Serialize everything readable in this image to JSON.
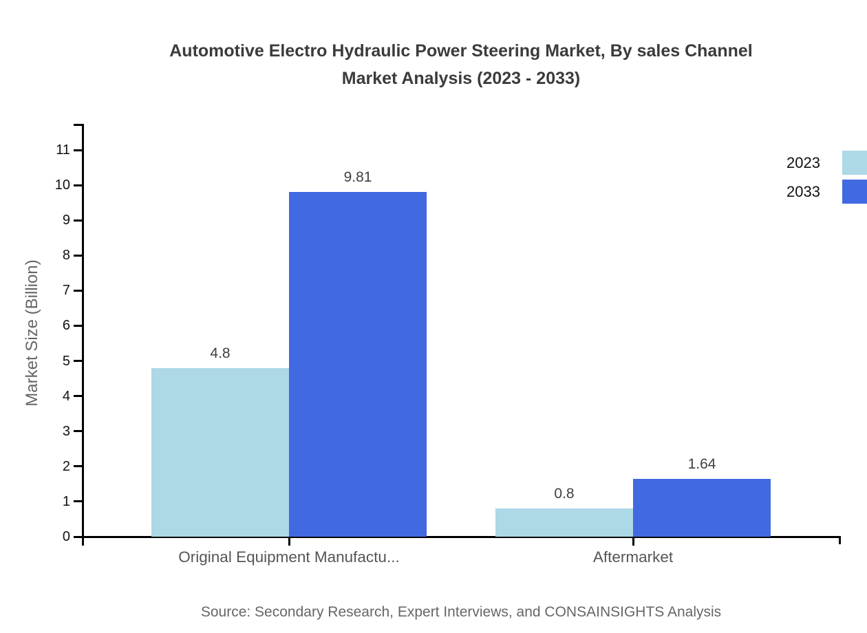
{
  "title_line1": "Automotive Electro Hydraulic Power Steering Market, By sales Channel",
  "title_line2": "Market Analysis (2023 - 2033)",
  "source": "Source: Secondary Research, Expert Interviews, and CONSAINSIGHTS Analysis",
  "chart_data": {
    "type": "bar",
    "title": "Automotive Electro Hydraulic Power Steering Market, By sales Channel Market Analysis (2023 - 2033)",
    "ylabel": "Market Size (Billion)",
    "xlabel": "",
    "categories": [
      "Original Equipment Manufactu...",
      "Aftermarket"
    ],
    "series": [
      {
        "name": "2023",
        "color": "#ADD8E6",
        "values": [
          4.8,
          0.8
        ],
        "labels": [
          "4.8",
          "0.8"
        ]
      },
      {
        "name": "2033",
        "color": "#4169E1",
        "values": [
          9.81,
          1.64
        ],
        "labels": [
          "9.81",
          "1.64"
        ]
      }
    ],
    "yticks": [
      0,
      1,
      2,
      3,
      4,
      5,
      6,
      7,
      8,
      9,
      10,
      11
    ],
    "ylim": [
      0,
      11.75
    ],
    "grid": false,
    "legend_position": "top-right",
    "axis_color": "#000000"
  }
}
